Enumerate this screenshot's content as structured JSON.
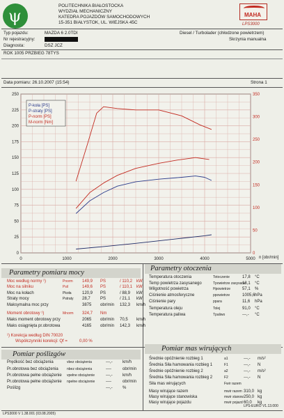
{
  "header": {
    "institution": [
      "POLITECHNIKA BIAŁOSTOCKA",
      "WYDZIAŁ MECHANICZNY",
      "KATEDRA POJAZDÓW SAMOCHODOWYCH",
      "15-351 BIAŁYSTOK, UL. WIEJSKA 45C"
    ],
    "left_logo_text": "ψ",
    "right_logo_text": "MAHA",
    "device": "LPS3000"
  },
  "vehicle": {
    "type_label": "Typ pojazdu:",
    "type_value": "MAZDA 6 2.0TDI",
    "reg_label": "Nr rejestracyjny:",
    "diag_label": "Diagnosta:",
    "diag_value": "DSZ JCZ",
    "engine": "Diesel / Turbolader (chłodzone powietrzem)",
    "gearbox": "Skrzynia manualna",
    "note": "ROK 1005 PRZBIEG 78TYS"
  },
  "date_line": "Data pomiaru: 26.10.2007 (15:54)",
  "page": "Strona 1",
  "chart_data": {
    "type": "line",
    "xlabel": "n [obr/min]",
    "xlim": [
      0,
      5000
    ],
    "ylim_left": [
      0,
      250
    ],
    "ylim_right": [
      0,
      350
    ],
    "x_ticks": [
      "0",
      "1000",
      "2000",
      "3000",
      "4000",
      "5000"
    ],
    "y_ticks_left": [
      "0",
      "25",
      "50",
      "75",
      "100",
      "125",
      "150",
      "175",
      "200",
      "225",
      "250"
    ],
    "y_ticks_right": [
      "0",
      "50",
      "100",
      "150",
      "200",
      "250",
      "300",
      "350"
    ],
    "legend": [
      "P-koła [PS]",
      "P-straty [PS]",
      "P-norm [PS]",
      "M-norm [Nm]"
    ],
    "grid": true,
    "series": [
      {
        "name": "P-koła [PS]",
        "color": "#2a3a8a",
        "axis": "left",
        "points": [
          [
            1200,
            62
          ],
          [
            1500,
            82
          ],
          [
            1800,
            95
          ],
          [
            2100,
            105
          ],
          [
            2500,
            112
          ],
          [
            3000,
            116
          ],
          [
            3500,
            119
          ],
          [
            3800,
            121
          ],
          [
            4000,
            119
          ],
          [
            4150,
            114
          ]
        ]
      },
      {
        "name": "P-straty [PS]",
        "color": "#1e2a66",
        "axis": "left",
        "points": [
          [
            1200,
            6
          ],
          [
            1800,
            10
          ],
          [
            2500,
            15
          ],
          [
            3000,
            19
          ],
          [
            3500,
            23
          ],
          [
            4000,
            27
          ],
          [
            4150,
            28.5
          ]
        ]
      },
      {
        "name": "P-norm [PS]",
        "color": "#c22a20",
        "axis": "left",
        "points": [
          [
            1200,
            70
          ],
          [
            1500,
            95
          ],
          [
            1800,
            110
          ],
          [
            2100,
            122
          ],
          [
            2500,
            133
          ],
          [
            3000,
            141
          ],
          [
            3400,
            146
          ],
          [
            3800,
            150
          ],
          [
            4100,
            147
          ]
        ]
      },
      {
        "name": "M-norm [Nm]",
        "color": "#c22a20",
        "axis": "right",
        "points": [
          [
            1200,
            158
          ],
          [
            1450,
            240
          ],
          [
            1650,
            308
          ],
          [
            1800,
            322
          ],
          [
            2100,
            318
          ],
          [
            2500,
            315
          ],
          [
            3000,
            315
          ],
          [
            3500,
            302
          ],
          [
            3900,
            282
          ],
          [
            4150,
            272
          ]
        ]
      }
    ]
  },
  "params": {
    "title": "Parametry pomiaru mocy",
    "rows": [
      {
        "label": "Moc według normy ¹)",
        "sym": "Pnorm",
        "v1": "149,9",
        "u1": "PS",
        "v2": "/ 110,2",
        "u2": "kW",
        "red": true
      },
      {
        "label": "Moc na silniku",
        "sym": "Psil",
        "v1": "149,6",
        "u1": "PS",
        "v2": "/ 110,1",
        "u2": "kW",
        "red": true
      },
      {
        "label": "Moc na kołach",
        "sym": "Pkoła",
        "v1": "120,9",
        "sym2": "PS",
        "v2": "/ 88,9",
        "u2": "kW",
        "red": false
      },
      {
        "label": "Straty mocy",
        "sym": "Pstraty",
        "v1": "28,7",
        "u1": "PS",
        "v2": "/ 21,1",
        "u2": "kW",
        "red": false
      },
      {
        "label": "Maksymalna moc przy",
        "sym": "",
        "v1": "3875",
        "u1": "obr/min",
        "v2": "132,3",
        "u2": "km/h",
        "red": false
      },
      {
        "label": "Moment obrotowy ¹)",
        "sym": "Mnorm",
        "v1": "324,7",
        "u1": "Nm",
        "v2": "",
        "u2": "",
        "red": true
      },
      {
        "label": "Maks moment obrotowy przy",
        "sym": "",
        "v1": "2065",
        "u1": "obr/min",
        "v2": "70,5",
        "u2": "km/h",
        "red": false
      },
      {
        "label": "Maks osiągnięta pr.obrotowa",
        "sym": "",
        "v1": "4165",
        "u1": "obr/min",
        "v2": "142,3",
        "u2": "km/h",
        "red": false
      }
    ],
    "norm_note": "¹) Korekcja według DIN 70020",
    "coef_label": "Współczynniki korekcji: Qf =",
    "coef_value": "0,00 %"
  },
  "env": {
    "title": "Parametry otoczenia",
    "rows": [
      {
        "label": "Temperatura otoczenia",
        "sym": "Totoczenie",
        "val": "17,8",
        "unit": "°C"
      },
      {
        "label": "Temp powietrza zasysanego",
        "sym": "Tpowietrze zasysane",
        "val": "18,1",
        "unit": "°C"
      },
      {
        "label": "Wilgotność powietrza",
        "sym": "Hpowietrze",
        "val": "57,1",
        "unit": "%"
      },
      {
        "label": "Ciśnienie atmosferyczne",
        "sym": "ppowietrze",
        "val": "1005,6",
        "unit": "hPa"
      },
      {
        "label": "Ciśnienie pary",
        "sym": "ppara",
        "val": "11,6",
        "unit": "hPa"
      },
      {
        "label": "Temperatura oleju",
        "sym": "Tolej",
        "val": "91,0",
        "unit": "°C"
      },
      {
        "label": "Temperatura paliwa",
        "sym": "Tpaliwo",
        "val": "---,-",
        "unit": "°C"
      }
    ]
  },
  "slip": {
    "title": "Pomiar poślizgów",
    "rows": [
      {
        "label": "Prędkość bez obciążenia",
        "sym": "vbez obciążenia",
        "val": "---,-",
        "unit": "km/h"
      },
      {
        "label": "Pr.obrotowa bez obciążenia",
        "sym": "nbez obciążenia",
        "val": "----",
        "unit": "obr/min"
      },
      {
        "label": "Pr.obrotowa pełne obciążenie",
        "sym": "vpełne obciążenie",
        "val": "---,-",
        "unit": "km/h"
      },
      {
        "label": "Pr.obrotowa pełne obciążenie",
        "sym": "npełne obciążenie",
        "val": "----",
        "unit": "obr/min"
      },
      {
        "label": "Poślizg",
        "sym": "",
        "val": "---,-",
        "unit": "%"
      }
    ]
  },
  "mass": {
    "title": "Pomiar mas wirujących",
    "rows": [
      {
        "label": "Średnie opóźnienie rozbieg 1",
        "sym": "a1",
        "val": "---,-",
        "unit": "m/s²"
      },
      {
        "label": "Średnia Siła hamowania rozbieg 1",
        "sym": "F1",
        "val": "---,-",
        "unit": "N"
      },
      {
        "label": "Średnie opóźnienie rozbieg 2",
        "sym": "a2",
        "val": "---,-",
        "unit": "m/s²"
      },
      {
        "label": "Średnia Siła hamowania rozbieg 2",
        "sym": "F2",
        "val": "---,-",
        "unit": "N"
      },
      {
        "label": "Siła mas wirujących",
        "sym": "Fwir razem",
        "val": "",
        "unit": ""
      },
      {
        "label": "Masy wirujące razem",
        "sym": "mwir razem",
        "val": "310,0",
        "unit": "kg"
      },
      {
        "label": "Masy wirujące stanowiska",
        "sym": "mwir stanow",
        "val": "250,0",
        "unit": "kg"
      },
      {
        "label": "Masy wirujące pojazdu",
        "sym": "mwir pojazd",
        "val": "60,0",
        "unit": "kg"
      }
    ]
  },
  "footer": {
    "left": "LPS3000 V 1.38.001 (03.08.2005)",
    "right": "LPS-EURO V1.13.000"
  }
}
